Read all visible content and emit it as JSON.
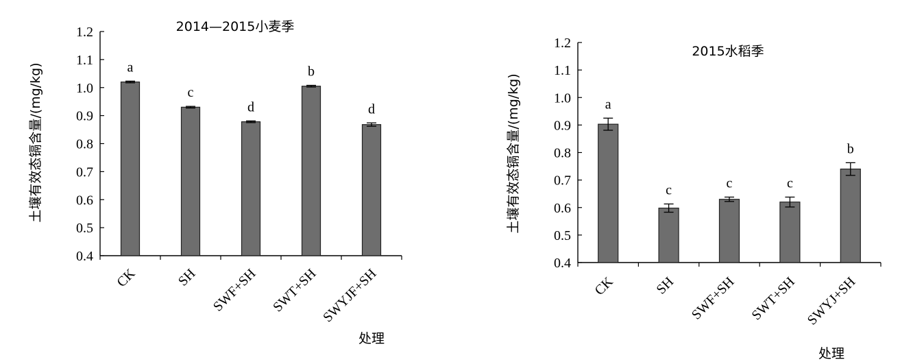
{
  "chart_data": [
    {
      "type": "bar",
      "title": "2014—2015小麦季",
      "ylabel": "土壤有效态镉含量/(mg/kg)",
      "xlabel": "处理",
      "ylim": [
        0.4,
        1.2
      ],
      "yticks": [
        "0.4",
        "0.5",
        "0.6",
        "0.7",
        "0.8",
        "0.9",
        "1.0",
        "1.1",
        "1.2"
      ],
      "categories": [
        "CK",
        "SH",
        "SWF+SH",
        "SWT+SH",
        "SWYJF+SH"
      ],
      "values": [
        1.02,
        0.93,
        0.878,
        1.005,
        0.868
      ],
      "errors": [
        0.003,
        0.003,
        0.003,
        0.003,
        0.006
      ],
      "letters": [
        "a",
        "c",
        "d",
        "b",
        "d"
      ],
      "bar_color": "#6e6e6e",
      "grid": false
    },
    {
      "type": "bar",
      "title": "2015水稻季",
      "ylabel": "土壤有效态镉含量/(mg/kg)",
      "xlabel": "处理",
      "ylim": [
        0.4,
        1.2
      ],
      "yticks": [
        "0.4",
        "0.5",
        "0.6",
        "0.7",
        "0.8",
        "0.9",
        "1.0",
        "1.1",
        "1.2"
      ],
      "categories": [
        "CK",
        "SH",
        "SWF+SH",
        "SWT+SH",
        "SWYJ+SH"
      ],
      "values": [
        0.903,
        0.598,
        0.63,
        0.62,
        0.74
      ],
      "errors": [
        0.022,
        0.015,
        0.008,
        0.018,
        0.023
      ],
      "letters": [
        "a",
        "c",
        "c",
        "c",
        "b"
      ],
      "bar_color": "#6e6e6e",
      "grid": false
    }
  ]
}
